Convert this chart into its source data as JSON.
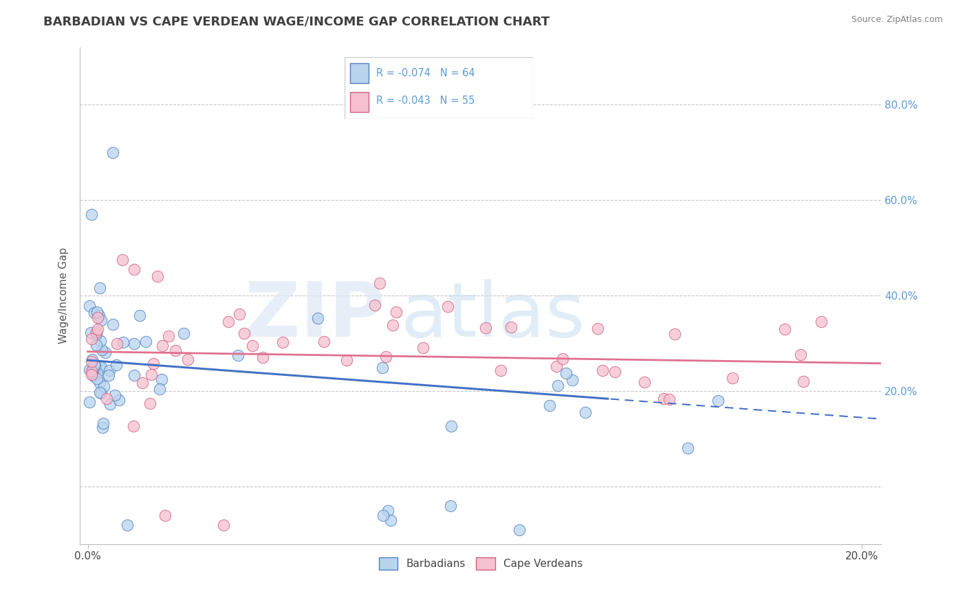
{
  "title": "BARBADIAN VS CAPE VERDEAN WAGE/INCOME GAP CORRELATION CHART",
  "source_text": "Source: ZipAtlas.com",
  "ylabel": "Wage/Income Gap",
  "xlim": [
    -0.002,
    0.205
  ],
  "ylim": [
    -0.12,
    0.92
  ],
  "x_ticks": [
    0.0,
    0.2
  ],
  "x_tick_labels": [
    "0.0%",
    "20.0%"
  ],
  "y_ticks": [
    0.0,
    0.2,
    0.4,
    0.6,
    0.8
  ],
  "y_tick_labels": [
    "",
    "20.0%",
    "40.0%",
    "60.0%",
    "80.0%"
  ],
  "grid_color": "#c8c8c8",
  "background_color": "#ffffff",
  "barbadian_color": "#b8d4ee",
  "barbadian_edge_color": "#5080c0",
  "cape_verdean_color": "#f5c0d0",
  "cape_verdean_edge_color": "#d06080",
  "barb_line_color": "#4472c4",
  "cape_line_color": "#e07090",
  "legend_label_1": "Barbadians",
  "legend_label_2": "Cape Verdeans",
  "title_fontsize": 13,
  "label_fontsize": 11,
  "tick_fontsize": 11,
  "right_tick_color": "#5b9bd5",
  "title_color": "#404040",
  "source_color": "#808080"
}
